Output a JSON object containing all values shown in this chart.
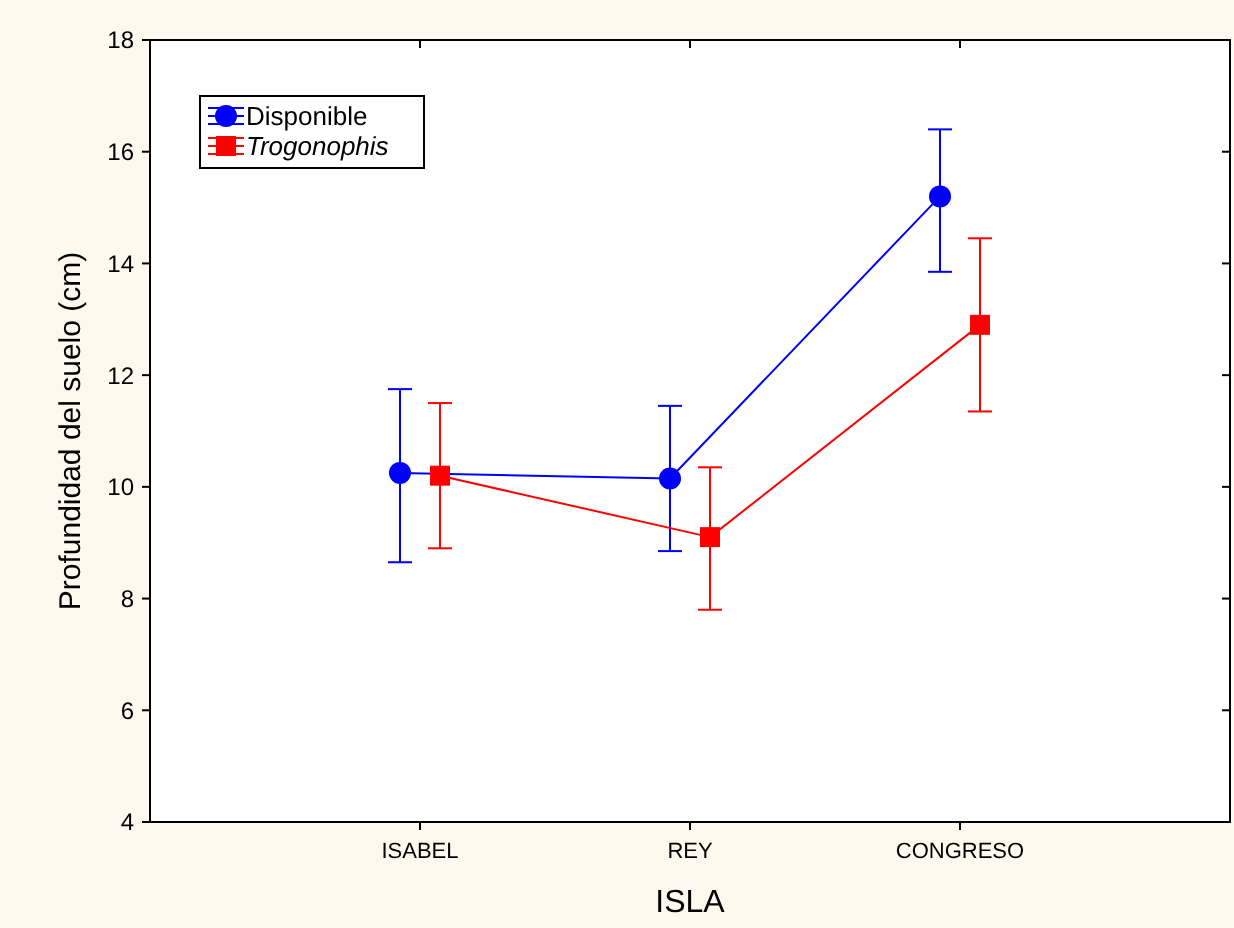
{
  "chart_data": {
    "type": "line",
    "xlabel": "ISLA",
    "ylabel": "Profundidad del suelo (cm)",
    "categories": [
      "ISABEL",
      "REY",
      "CONGRESO"
    ],
    "series": [
      {
        "name": "Disponible",
        "color": "#0000ff",
        "marker": "circle",
        "values": [
          10.25,
          10.15,
          15.2
        ],
        "errors": [
          [
            8.65,
            11.75
          ],
          [
            8.85,
            11.45
          ],
          [
            13.85,
            16.4
          ]
        ]
      },
      {
        "name": "Trogonophis",
        "color": "#ff0000",
        "marker": "square",
        "values": [
          10.2,
          9.1,
          12.9
        ],
        "errors": [
          [
            8.9,
            11.5
          ],
          [
            7.8,
            10.35
          ],
          [
            11.35,
            14.45
          ]
        ]
      }
    ],
    "ylim": [
      4,
      18
    ],
    "yticks": [
      4,
      6,
      8,
      10,
      12,
      14,
      16,
      18
    ],
    "grid": false,
    "legend": "top left"
  }
}
